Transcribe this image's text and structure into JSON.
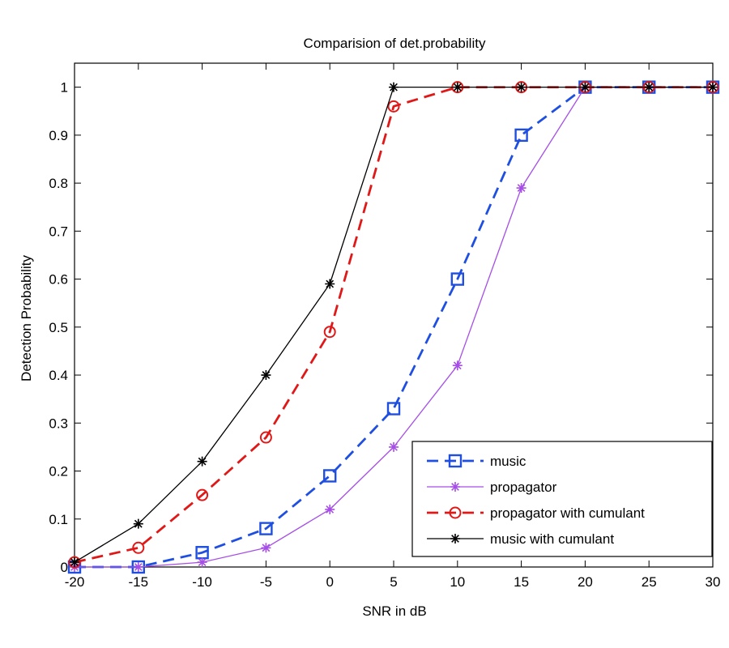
{
  "chart_data": {
    "type": "line",
    "title": "Comparision of det.probability",
    "xlabel": "SNR in dB",
    "ylabel": "Detection Probability",
    "x": [
      -20,
      -15,
      -10,
      -5,
      0,
      5,
      10,
      15,
      20,
      25,
      30
    ],
    "xlim": [
      -20,
      30
    ],
    "ylim": [
      0,
      1.05
    ],
    "xticks": [
      -20,
      -15,
      -10,
      -5,
      0,
      5,
      10,
      15,
      20,
      25,
      30
    ],
    "xtick_labels": [
      "-20",
      "-15",
      "-10",
      "-5",
      "0",
      "5",
      "10",
      "15",
      "20",
      "25",
      "30"
    ],
    "yticks": [
      0,
      0.1,
      0.2,
      0.3,
      0.4,
      0.5,
      0.6,
      0.7,
      0.8,
      0.9,
      1
    ],
    "ytick_labels": [
      "0",
      "0.1",
      "0.2",
      "0.3",
      "0.4",
      "0.5",
      "0.6",
      "0.7",
      "0.8",
      "0.9",
      "1"
    ],
    "grid": false,
    "legend_position": "bottom-right",
    "series": [
      {
        "name": "music",
        "color": "#1f4fe0",
        "line_style": "dashed",
        "marker": "square",
        "values": [
          0,
          0,
          0.03,
          0.08,
          0.19,
          0.33,
          0.6,
          0.9,
          1,
          1,
          1
        ]
      },
      {
        "name": "propagator",
        "color": "#a64ee6",
        "line_style": "solid",
        "marker": "star",
        "values": [
          0,
          0,
          0.01,
          0.04,
          0.12,
          0.25,
          0.42,
          0.79,
          1,
          1,
          1
        ]
      },
      {
        "name": "propagator with cumulant",
        "color": "#e01818",
        "line_style": "dashed",
        "marker": "circle",
        "values": [
          0.01,
          0.04,
          0.15,
          0.27,
          0.49,
          0.96,
          1,
          1,
          1,
          1,
          1
        ]
      },
      {
        "name": "music with cumulant",
        "color": "#000000",
        "line_style": "solid",
        "marker": "star",
        "values": [
          0.01,
          0.09,
          0.22,
          0.4,
          0.59,
          1,
          1,
          1,
          1,
          1,
          1
        ]
      }
    ]
  }
}
